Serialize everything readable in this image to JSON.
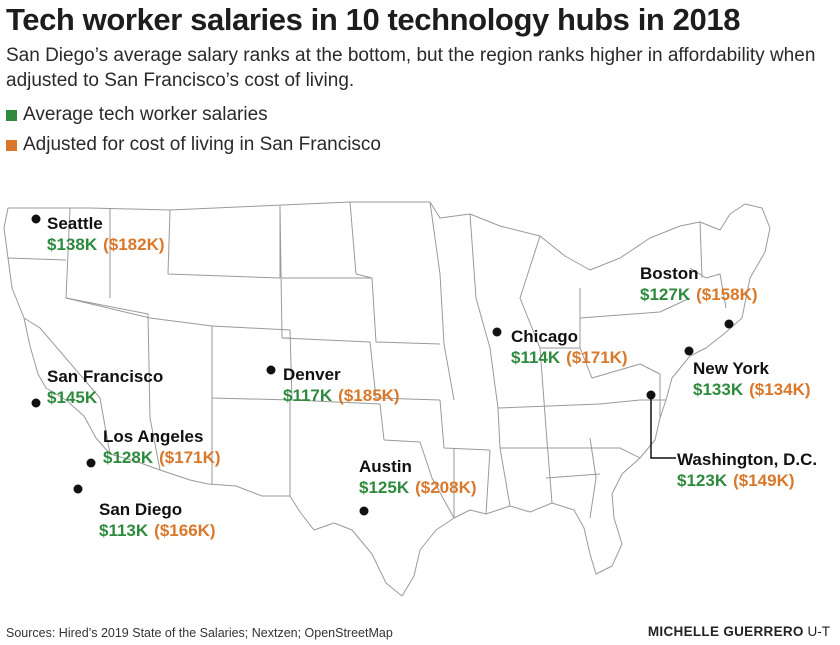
{
  "title": "Tech worker salaries in 10 technology hubs in 2018",
  "subtitle": "San Diego’s average salary ranks at the bottom, but the region ranks higher in affordability when adjusted to San Francisco’s cost of living.",
  "legend": [
    {
      "label": "Average tech worker salaries",
      "color": "#2e8b3e"
    },
    {
      "label": "Adjusted for cost of living in San Francisco",
      "color": "#d9782a"
    }
  ],
  "colors": {
    "average": "#2e8b3e",
    "adjusted": "#d9782a",
    "map_stroke": "#9a9a9a"
  },
  "cities": [
    {
      "name": "Seattle",
      "average": "$138K",
      "adjusted": "($182K)"
    },
    {
      "name": "San Francisco",
      "average": "$145K",
      "adjusted": ""
    },
    {
      "name": "Los Angeles",
      "average": "$128K",
      "adjusted": "($171K)"
    },
    {
      "name": "San Diego",
      "average": "$113K",
      "adjusted": "($166K)"
    },
    {
      "name": "Denver",
      "average": "$117K",
      "adjusted": "($185K)"
    },
    {
      "name": "Austin",
      "average": "$125K",
      "adjusted": "($208K)"
    },
    {
      "name": "Chicago",
      "average": "$114K",
      "adjusted": "($171K)"
    },
    {
      "name": "Boston",
      "average": "$127K",
      "adjusted": "($158K)"
    },
    {
      "name": "New York",
      "average": "$133K",
      "adjusted": "($134K)"
    },
    {
      "name": "Washington, D.C.",
      "average": "$123K",
      "adjusted": "($149K)"
    }
  ],
  "footer": {
    "sources": "Sources: Hired’s 2019 State of the Salaries; Nextzen; OpenStreetMap",
    "author": "MICHELLE GUERRERO",
    "org": "U-T"
  }
}
